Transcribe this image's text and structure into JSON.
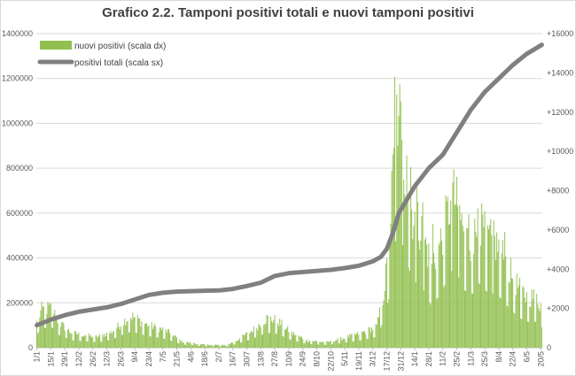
{
  "chart_data": {
    "type": "bar+line",
    "title": "Grafico 2.2. Tamponi positivi totali e nuovi tamponi positivi",
    "legend": [
      "nuovi positivi (scala dx)",
      "positivi totali (scala sx)"
    ],
    "legend_placement": "top-left",
    "y_left": {
      "min": 0,
      "max": 1400000,
      "ticks": [
        "0",
        "200000",
        "400000",
        "600000",
        "800000",
        "1000000",
        "1200000",
        "1400000"
      ]
    },
    "y_right": {
      "min": 0,
      "max": 16000,
      "ticks": [
        "0",
        "+2000",
        "+4000",
        "+6000",
        "+8000",
        "+10000",
        "+12000",
        "+14000",
        "+16000"
      ]
    },
    "x_ticks": [
      "1/1",
      "15/1",
      "29/1",
      "12/2",
      "26/2",
      "12/3",
      "26/3",
      "9/4",
      "23/4",
      "7/5",
      "21/5",
      "4/6",
      "18/6",
      "2/7",
      "16/7",
      "30/7",
      "13/8",
      "27/8",
      "10/9",
      "24/9",
      "8/10",
      "22/10",
      "5/11",
      "19/11",
      "3/12",
      "17/12",
      "31/12",
      "14/1",
      "28/1",
      "11/2",
      "25/2",
      "11/3",
      "25/3",
      "8/4",
      "22/4",
      "6/5",
      "20/5"
    ],
    "n_days": 506,
    "total_line": {
      "name": "positivi totali (scala sx)",
      "points": [
        [
          0,
          100000
        ],
        [
          14,
          125000
        ],
        [
          28,
          145000
        ],
        [
          42,
          160000
        ],
        [
          56,
          170000
        ],
        [
          70,
          180000
        ],
        [
          84,
          195000
        ],
        [
          98,
          215000
        ],
        [
          112,
          235000
        ],
        [
          126,
          245000
        ],
        [
          140,
          250000
        ],
        [
          154,
          252000
        ],
        [
          168,
          254000
        ],
        [
          182,
          255000
        ],
        [
          196,
          262000
        ],
        [
          210,
          275000
        ],
        [
          224,
          290000
        ],
        [
          238,
          320000
        ],
        [
          252,
          332000
        ],
        [
          266,
          337000
        ],
        [
          280,
          342000
        ],
        [
          294,
          347000
        ],
        [
          308,
          355000
        ],
        [
          322,
          365000
        ],
        [
          336,
          385000
        ],
        [
          344,
          405000
        ],
        [
          350,
          440000
        ],
        [
          356,
          510000
        ],
        [
          362,
          600000
        ],
        [
          370,
          660000
        ],
        [
          378,
          720000
        ],
        [
          392,
          800000
        ],
        [
          406,
          860000
        ],
        [
          420,
          960000
        ],
        [
          434,
          1060000
        ],
        [
          448,
          1140000
        ],
        [
          462,
          1200000
        ],
        [
          476,
          1260000
        ],
        [
          490,
          1310000
        ],
        [
          505,
          1350000
        ]
      ],
      "color": "#808080"
    },
    "new_bars": {
      "name": "nuovi positivi (scala dx)",
      "color": "#92c050",
      "profile": [
        [
          0,
          1200
        ],
        [
          5,
          1800
        ],
        [
          15,
          1900
        ],
        [
          22,
          1200
        ],
        [
          35,
          700
        ],
        [
          60,
          500
        ],
        [
          75,
          750
        ],
        [
          88,
          1300
        ],
        [
          95,
          1500
        ],
        [
          110,
          1100
        ],
        [
          130,
          800
        ],
        [
          145,
          300
        ],
        [
          165,
          150
        ],
        [
          190,
          120
        ],
        [
          200,
          350
        ],
        [
          215,
          800
        ],
        [
          230,
          1400
        ],
        [
          240,
          1300
        ],
        [
          255,
          700
        ],
        [
          270,
          350
        ],
        [
          290,
          250
        ],
        [
          310,
          500
        ],
        [
          325,
          700
        ],
        [
          340,
          1000
        ],
        [
          346,
          2300
        ],
        [
          352,
          4500
        ],
        [
          356,
          8200
        ],
        [
          362,
          11500
        ],
        [
          368,
          8500
        ],
        [
          376,
          6300
        ],
        [
          386,
          5500
        ],
        [
          394,
          4000
        ],
        [
          402,
          4700
        ],
        [
          408,
          5800
        ],
        [
          416,
          7300
        ],
        [
          422,
          6500
        ],
        [
          428,
          5300
        ],
        [
          436,
          5000
        ],
        [
          442,
          6000
        ],
        [
          450,
          5200
        ],
        [
          462,
          4800
        ],
        [
          472,
          3700
        ],
        [
          482,
          2800
        ],
        [
          490,
          2400
        ],
        [
          500,
          2400
        ],
        [
          505,
          1900
        ]
      ],
      "peaks": [
        [
          358,
          13800
        ],
        [
          360,
          12900
        ],
        [
          362,
          11800
        ],
        [
          365,
          10600
        ],
        [
          370,
          9800
        ],
        [
          374,
          9200
        ],
        [
          380,
          8500
        ],
        [
          386,
          7400
        ],
        [
          396,
          6300
        ],
        [
          414,
          7500
        ],
        [
          421,
          7200
        ],
        [
          432,
          6800
        ],
        [
          441,
          7100
        ],
        [
          457,
          6500
        ],
        [
          468,
          5900
        ]
      ]
    },
    "grid": "horizontal"
  }
}
